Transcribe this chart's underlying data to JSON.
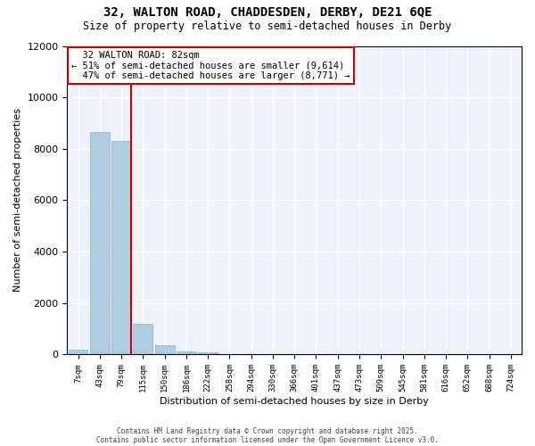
{
  "title": "32, WALTON ROAD, CHADDESDEN, DERBY, DE21 6QE",
  "subtitle": "Size of property relative to semi-detached houses in Derby",
  "xlabel": "Distribution of semi-detached houses by size in Derby",
  "ylabel": "Number of semi-detached properties",
  "property_size_label": "32 WALTON ROAD: 82sqm",
  "pct_smaller": 51,
  "pct_larger": 47,
  "n_smaller": 9614,
  "n_larger": 8771,
  "bin_labels": [
    "7sqm",
    "43sqm",
    "79sqm",
    "115sqm",
    "150sqm",
    "186sqm",
    "222sqm",
    "258sqm",
    "294sqm",
    "330sqm",
    "366sqm",
    "401sqm",
    "437sqm",
    "473sqm",
    "509sqm",
    "545sqm",
    "581sqm",
    "616sqm",
    "652sqm",
    "688sqm",
    "724sqm"
  ],
  "bar_heights": [
    200,
    8650,
    8300,
    1200,
    350,
    130,
    80,
    0,
    0,
    0,
    0,
    0,
    0,
    0,
    0,
    0,
    0,
    0,
    0,
    0,
    0
  ],
  "property_bin_index": 2,
  "bar_color": "#aecde0",
  "bar_edge_color": "#7fb3d0",
  "red_line_color": "#cc0000",
  "annotation_box_color": "#cc0000",
  "background_color": "#eef2fa",
  "grid_color": "#ffffff",
  "ylim": [
    0,
    12000
  ],
  "footer_line1": "Contains HM Land Registry data © Crown copyright and database right 2025.",
  "footer_line2": "Contains public sector information licensed under the Open Government Licence v3.0."
}
